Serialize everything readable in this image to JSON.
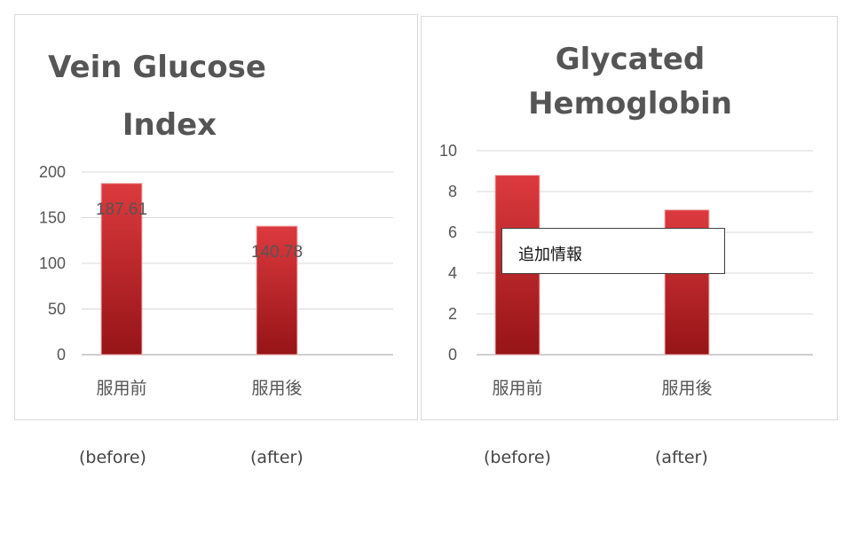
{
  "chart_data": [
    {
      "type": "bar",
      "title_lines": [
        "Vein Glucose",
        "Index"
      ],
      "categories": [
        "服用前",
        "服用後"
      ],
      "values": [
        187.61,
        140.78
      ],
      "data_labels": [
        "187.61",
        "140.78"
      ],
      "ylim": [
        0,
        200
      ],
      "yticks": [
        "0",
        "50",
        "100",
        "150",
        "200"
      ],
      "grid": true,
      "bar_color": "#c0262c"
    },
    {
      "type": "bar",
      "title_lines": [
        "Glycated",
        "Hemoglobin"
      ],
      "categories": [
        "服用前",
        "服用後"
      ],
      "values": [
        8.8,
        7.1
      ],
      "ylim": [
        0,
        10
      ],
      "yticks": [
        "0",
        "2",
        "4",
        "6",
        "8",
        "10"
      ],
      "grid": true,
      "bar_color": "#c0262c"
    }
  ],
  "note": {
    "text": "追加情報"
  },
  "captions": {
    "left_before": "(before)",
    "left_after": "(after)",
    "right_before": "(before)",
    "right_after": "(after)"
  }
}
